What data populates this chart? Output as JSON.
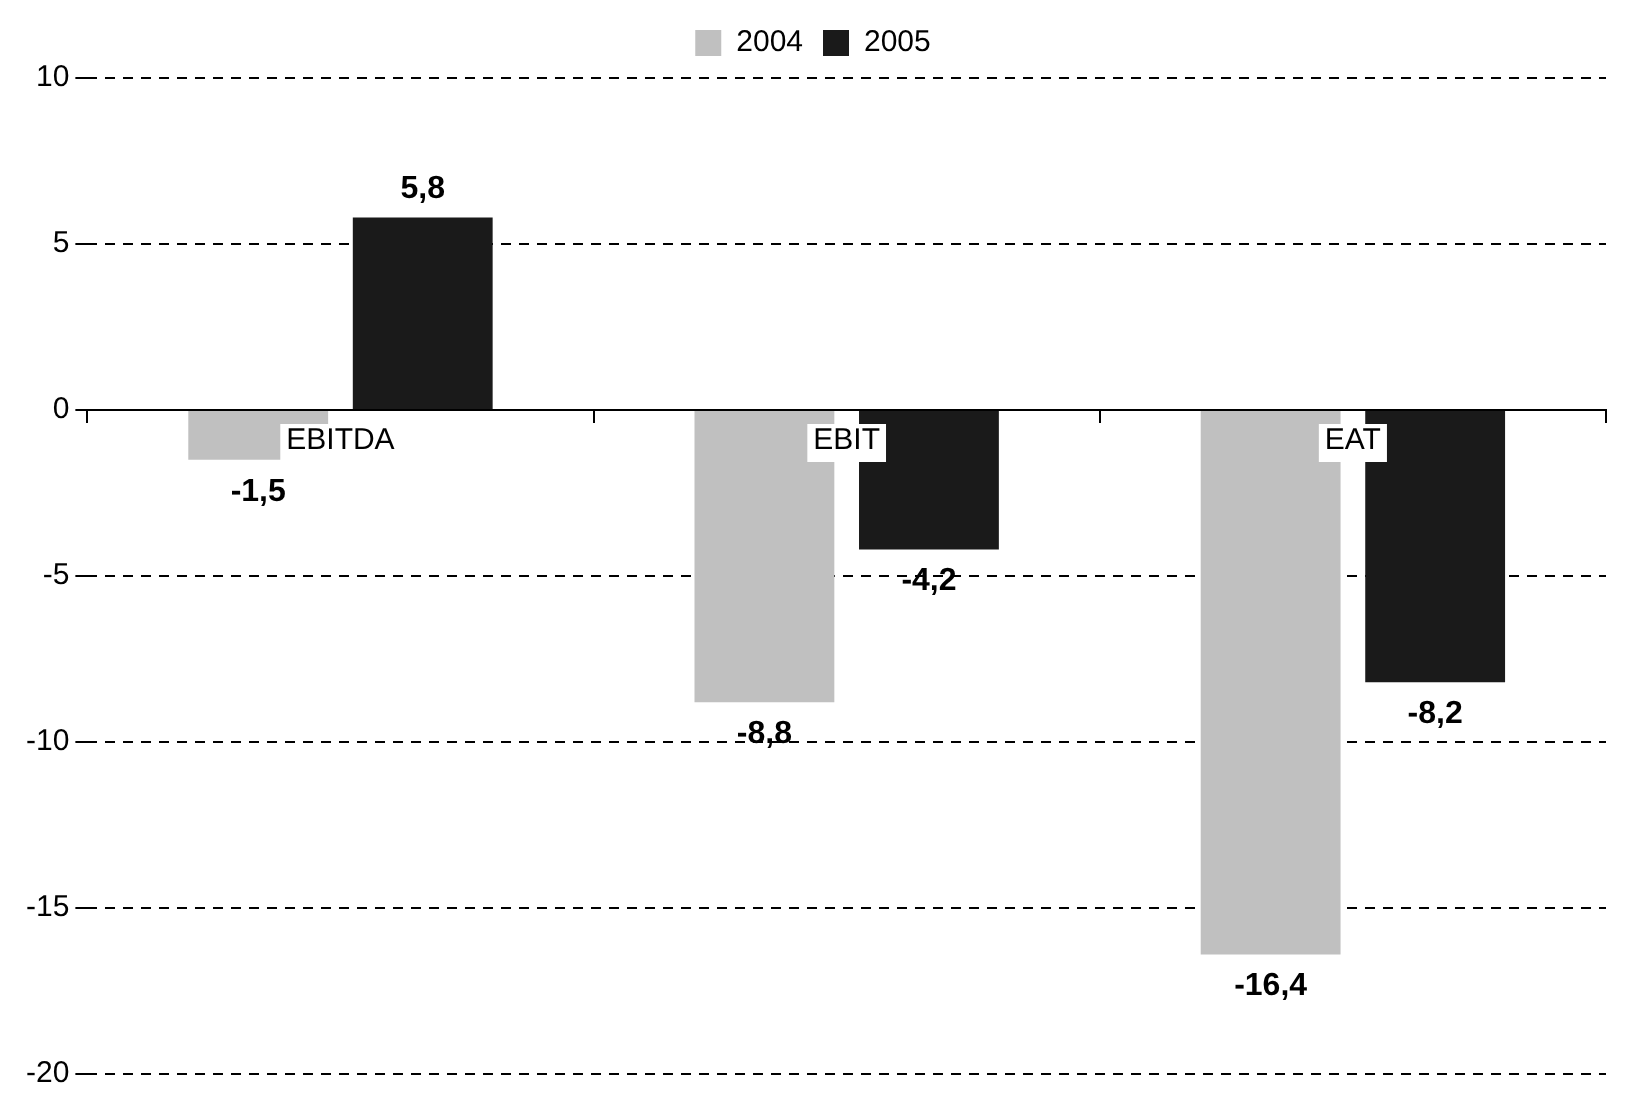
{
  "chart_data": {
    "type": "bar",
    "categories": [
      "EBITDA",
      "EBIT",
      "EAT"
    ],
    "series": [
      {
        "name": "2004",
        "color": "#c0c0c0",
        "values": [
          -1.5,
          -8.8,
          -16.4
        ],
        "value_labels": [
          "-1,5",
          "-8,8",
          "-16,4"
        ]
      },
      {
        "name": "2005",
        "color": "#1a1a1a",
        "values": [
          5.8,
          -4.2,
          -8.2
        ],
        "value_labels": [
          "5,8",
          "-4,2",
          "-8,2"
        ]
      }
    ],
    "ylim": [
      -20,
      10
    ],
    "yticks": [
      -20,
      -15,
      -10,
      -5,
      0,
      5,
      10
    ],
    "grid": "y",
    "legend": "top"
  }
}
